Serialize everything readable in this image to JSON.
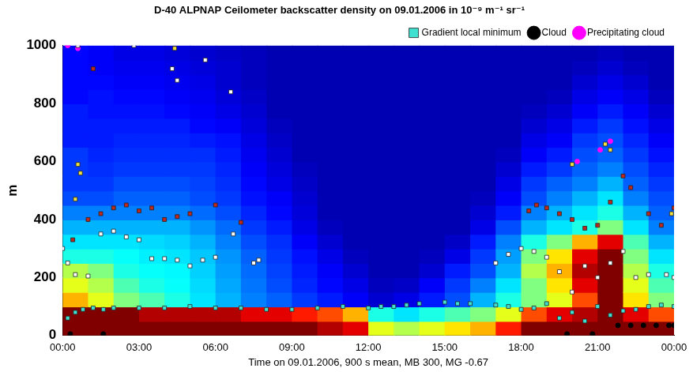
{
  "chart_data": {
    "type": "heatmap",
    "title": "D-40 ALPNAP Ceilometer backscatter density on 09.01.2006 in 10⁻⁹ m⁻¹ sr⁻¹",
    "x_label": "Time on 09.01.2006, 900 s mean, MB 300, MG -0.67",
    "y_label": "m",
    "xlim": [
      0,
      24
    ],
    "xticks": [
      {
        "value": 0,
        "label": "00:00"
      },
      {
        "value": 3,
        "label": "03:00"
      },
      {
        "value": 6,
        "label": "06:00"
      },
      {
        "value": 9,
        "label": "09:00"
      },
      {
        "value": 12,
        "label": "12:00"
      },
      {
        "value": 15,
        "label": "15:00"
      },
      {
        "value": 18,
        "label": "18:00"
      },
      {
        "value": 21,
        "label": "21:00"
      },
      {
        "value": 24,
        "label": "00:00"
      }
    ],
    "ylim": [
      0,
      1000
    ],
    "yticks": [
      0,
      200,
      400,
      600,
      800,
      1000
    ],
    "grid": false,
    "legend": "top right",
    "heatmap": {
      "x_edges": [
        0,
        1,
        2,
        3,
        4,
        5,
        6,
        7,
        8,
        9,
        10,
        11,
        12,
        13,
        14,
        15,
        16,
        17,
        18,
        19,
        20,
        21,
        22,
        23,
        24
      ],
      "y_edges": [
        0,
        50,
        100,
        150,
        200,
        250,
        300,
        350,
        400,
        450,
        500,
        550,
        600,
        650,
        700,
        750,
        800,
        850,
        900,
        950,
        1000
      ],
      "color_range": [
        0,
        1000
      ],
      "cells": [
        [
          1000,
          1000,
          700,
          600,
          550,
          400,
          350,
          300,
          250,
          200,
          180,
          180,
          180,
          150,
          150,
          150,
          130,
          130,
          130,
          130
        ],
        [
          1000,
          1000,
          600,
          550,
          500,
          400,
          350,
          300,
          250,
          200,
          180,
          170,
          160,
          150,
          150,
          140,
          140,
          130,
          120,
          120
        ],
        [
          1000,
          1000,
          500,
          450,
          400,
          380,
          350,
          300,
          250,
          220,
          200,
          180,
          170,
          160,
          150,
          140,
          130,
          120,
          110,
          100
        ],
        [
          1000,
          950,
          450,
          400,
          380,
          360,
          340,
          300,
          250,
          220,
          200,
          180,
          170,
          160,
          150,
          140,
          130,
          120,
          110,
          100
        ],
        [
          1000,
          950,
          400,
          380,
          370,
          350,
          330,
          300,
          250,
          220,
          200,
          180,
          170,
          160,
          150,
          130,
          120,
          110,
          100,
          90
        ],
        [
          1000,
          950,
          350,
          340,
          330,
          320,
          300,
          270,
          230,
          200,
          190,
          180,
          170,
          150,
          130,
          120,
          110,
          100,
          90,
          80
        ],
        [
          1000,
          950,
          300,
          290,
          280,
          270,
          250,
          230,
          200,
          180,
          170,
          160,
          150,
          140,
          120,
          100,
          90,
          80,
          80,
          70
        ],
        [
          1000,
          900,
          250,
          240,
          230,
          220,
          200,
          180,
          160,
          140,
          130,
          120,
          110,
          100,
          90,
          80,
          70,
          60,
          60,
          60
        ],
        [
          1000,
          900,
          220,
          200,
          190,
          180,
          170,
          150,
          130,
          120,
          100,
          90,
          80,
          70,
          60,
          50,
          50,
          50,
          50,
          50
        ],
        [
          1000,
          850,
          180,
          160,
          150,
          140,
          120,
          100,
          90,
          80,
          70,
          60,
          50,
          50,
          50,
          50,
          50,
          50,
          50,
          50
        ],
        [
          950,
          800,
          150,
          130,
          120,
          100,
          80,
          60,
          50,
          50,
          50,
          50,
          50,
          50,
          50,
          50,
          50,
          50,
          50,
          50
        ],
        [
          900,
          700,
          120,
          100,
          80,
          60,
          50,
          50,
          50,
          50,
          50,
          50,
          50,
          50,
          50,
          50,
          50,
          50,
          50,
          50
        ],
        [
          600,
          400,
          80,
          60,
          50,
          50,
          50,
          50,
          50,
          50,
          50,
          50,
          50,
          50,
          50,
          50,
          50,
          50,
          50,
          50
        ],
        [
          550,
          350,
          100,
          70,
          50,
          50,
          50,
          50,
          50,
          50,
          50,
          50,
          50,
          50,
          50,
          50,
          50,
          50,
          50,
          50
        ],
        [
          600,
          400,
          150,
          120,
          80,
          60,
          50,
          50,
          50,
          50,
          50,
          50,
          50,
          50,
          50,
          50,
          50,
          50,
          50,
          50
        ],
        [
          650,
          450,
          200,
          180,
          150,
          100,
          70,
          50,
          50,
          50,
          50,
          50,
          50,
          50,
          50,
          50,
          50,
          50,
          50,
          50
        ],
        [
          700,
          500,
          300,
          250,
          200,
          180,
          150,
          100,
          80,
          60,
          50,
          50,
          50,
          50,
          50,
          50,
          50,
          50,
          50,
          50
        ],
        [
          850,
          600,
          400,
          350,
          300,
          280,
          250,
          200,
          150,
          120,
          100,
          80,
          60,
          50,
          50,
          50,
          50,
          50,
          50,
          50
        ],
        [
          1000,
          800,
          500,
          500,
          550,
          500,
          400,
          300,
          250,
          200,
          180,
          150,
          120,
          100,
          80,
          60,
          50,
          50,
          50,
          50
        ],
        [
          1000,
          900,
          600,
          650,
          700,
          650,
          500,
          350,
          300,
          250,
          220,
          180,
          150,
          120,
          100,
          80,
          60,
          50,
          50,
          50
        ],
        [
          1000,
          950,
          800,
          900,
          950,
          900,
          700,
          400,
          350,
          300,
          250,
          220,
          200,
          180,
          150,
          120,
          100,
          80,
          60,
          50
        ],
        [
          1000,
          1000,
          1000,
          1000,
          1000,
          1000,
          900,
          500,
          400,
          350,
          300,
          250,
          220,
          200,
          180,
          150,
          120,
          100,
          80,
          60
        ],
        [
          1000,
          900,
          650,
          600,
          550,
          500,
          450,
          350,
          300,
          250,
          220,
          200,
          180,
          160,
          140,
          120,
          100,
          80,
          60,
          50
        ],
        [
          1000,
          800,
          500,
          450,
          400,
          350,
          300,
          250,
          220,
          200,
          180,
          160,
          140,
          120,
          100,
          80,
          60,
          50,
          50,
          50
        ]
      ]
    },
    "series": [
      {
        "type": "scatter",
        "marker": "square",
        "color": "#ffffff",
        "x": [
          0,
          0.2,
          0.5,
          1,
          1.5,
          2,
          2.5,
          3,
          3.5,
          4,
          4.5,
          5,
          5.5,
          6,
          6.7,
          7.5,
          7.7,
          17,
          17.5,
          18,
          18.5,
          19,
          19.5,
          20,
          20.5,
          21,
          21.5,
          22,
          22.5,
          23,
          23.7,
          24,
          0.6,
          2.8,
          4.3,
          4.5,
          5.6,
          6.6
        ],
        "values": [
          300,
          250,
          210,
          205,
          350,
          360,
          340,
          330,
          265,
          265,
          260,
          240,
          260,
          270,
          350,
          250,
          260,
          250,
          280,
          300,
          290,
          270,
          220,
          150,
          240,
          200,
          250,
          290,
          200,
          210,
          210,
          200,
          1000,
          1000,
          920,
          880,
          950,
          840
        ]
      },
      {
        "type": "scatter",
        "marker": "square",
        "color": "#c0281e",
        "x": [
          0.4,
          1,
          1.5,
          2,
          2.5,
          3,
          3.5,
          4,
          4.5,
          5,
          6,
          7,
          1.2,
          18.3,
          18.6,
          19,
          19.5,
          20,
          20.5,
          21,
          21.5,
          22,
          22.3,
          23,
          23.5,
          24
        ],
        "values": [
          330,
          400,
          420,
          440,
          450,
          430,
          440,
          400,
          410,
          420,
          450,
          390,
          920,
          430,
          450,
          440,
          420,
          400,
          370,
          380,
          460,
          550,
          510,
          420,
          380,
          440
        ]
      },
      {
        "type": "scatter",
        "marker": "square",
        "color": "#f0e040",
        "x": [
          0.5,
          0.6,
          0.7,
          20,
          21.3,
          21.5,
          23.9,
          4.4
        ],
        "values": [
          470,
          590,
          560,
          590,
          660,
          640,
          420,
          990
        ]
      },
      {
        "name": "Gradient local minimum",
        "type": "scatter",
        "marker": "square",
        "color": "#40e0d0",
        "x": [
          0.2,
          0.5,
          0.8,
          1.2,
          1.6,
          2,
          3,
          4,
          5,
          6,
          7,
          8,
          9,
          10,
          11,
          12,
          12.5,
          13,
          13.5,
          14,
          15,
          15.5,
          16,
          17,
          17.5,
          18,
          18.5,
          19,
          19.5,
          20,
          20.5,
          21,
          21.5,
          22,
          22.5,
          23,
          23.5,
          24
        ],
        "values": [
          60,
          80,
          90,
          95,
          90,
          95,
          95,
          95,
          100,
          95,
          95,
          90,
          90,
          95,
          100,
          95,
          100,
          100,
          105,
          110,
          115,
          110,
          110,
          105,
          100,
          90,
          95,
          110,
          60,
          80,
          50,
          100,
          70,
          85,
          90,
          100,
          105,
          100
        ]
      },
      {
        "name": "Cloud",
        "type": "scatter",
        "marker": "circle",
        "color": "#000000",
        "x": [
          0.3,
          1.6,
          19.8,
          20.8,
          21.8,
          22.3,
          22.8,
          23.3,
          23.8,
          24
        ],
        "values": [
          5,
          5,
          5,
          5,
          35,
          35,
          35,
          35,
          35,
          35
        ]
      },
      {
        "name": "Precipitating cloud",
        "type": "scatter",
        "marker": "circle",
        "color": "#ff00ff",
        "x": [
          0.2,
          0.6,
          20.2,
          21.1,
          21.5
        ],
        "values": [
          1000,
          990,
          600,
          640,
          670
        ]
      }
    ]
  }
}
